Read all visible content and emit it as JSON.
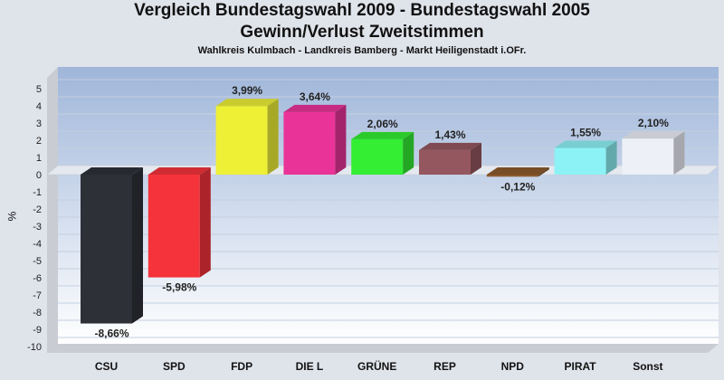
{
  "header": {
    "title_line1": "Vergleich Bundestagswahl 2009 - Bundestagswahl 2005",
    "title_line2": "Gewinn/Verlust Zweitstimmen",
    "subtitle": "Wahlkreis Kulmbach - Landkreis Bamberg - Markt Heiligenstadt i.OFr."
  },
  "chart_data": {
    "type": "bar",
    "title": "Vergleich Bundestagswahl 2009 - Bundestagswahl 2005 Gewinn/Verlust Zweitstimmen",
    "subtitle": "Wahlkreis Kulmbach - Landkreis Bamberg - Markt Heiligenstadt i.OFr.",
    "xlabel": "",
    "ylabel": "%",
    "ylim": [
      -10,
      5
    ],
    "yticks": [
      5,
      4,
      3,
      2,
      1,
      0,
      -1,
      -2,
      -3,
      -4,
      -5,
      -6,
      -7,
      -8,
      -9,
      -10
    ],
    "grid": true,
    "categories": [
      "CSU",
      "SPD",
      "FDP",
      "DIE L",
      "GRÜNE",
      "REP",
      "NPD",
      "PIRAT",
      "Sonst"
    ],
    "values": [
      -8.66,
      -5.98,
      3.99,
      3.64,
      2.06,
      1.43,
      -0.12,
      1.55,
      2.1
    ],
    "value_labels": [
      "-8,66%",
      "-5,98%",
      "3,99%",
      "3,64%",
      "2,06%",
      "1,43%",
      "-0,12%",
      "1,55%",
      "2,10%"
    ],
    "colors": [
      "#2e3038",
      "#f5333b",
      "#eef036",
      "#ea3399",
      "#33ee33",
      "#95575f",
      "#8b5a2b",
      "#8df2f5",
      "#edf0f7"
    ]
  }
}
